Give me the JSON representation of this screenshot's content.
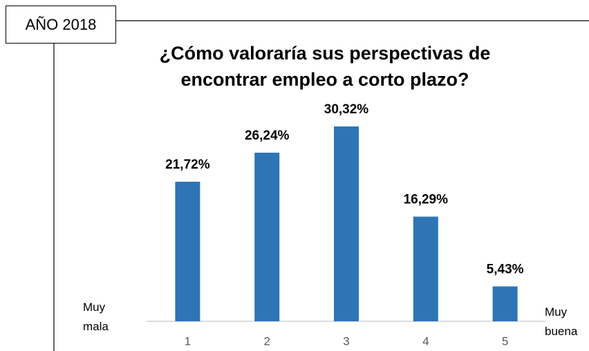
{
  "chart_data": {
    "type": "bar",
    "annotations": [
      "AÑO 2018",
      "Muy mala",
      "Muy buena"
    ],
    "title": "¿Cómo valoraría sus perspectivas de encontrar empleo a corto plazo?",
    "categories": [
      "1",
      "2",
      "3",
      "4",
      "5"
    ],
    "values": [
      21.72,
      26.24,
      30.32,
      16.29,
      5.43
    ],
    "value_labels": [
      "21,72%",
      "26,24%",
      "30,32%",
      "16,29%",
      "5,43%"
    ],
    "color": "#2e75b6",
    "ylim": [
      0,
      35
    ]
  }
}
